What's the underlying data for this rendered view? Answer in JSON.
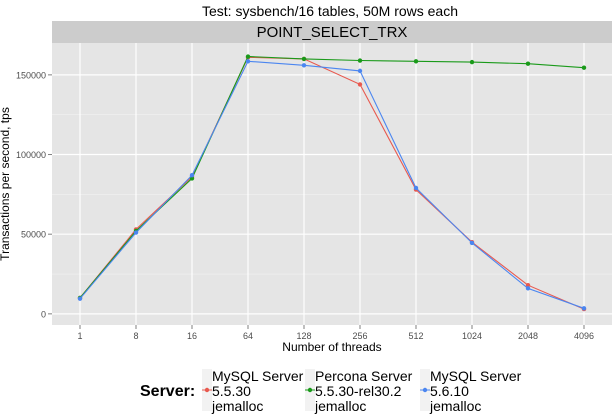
{
  "chart_data": {
    "type": "line",
    "title": "Test: sysbench/16 tables, 50M rows each",
    "facet_label": "POINT_SELECT_TRX",
    "xlabel": "Number of threads",
    "ylabel": "Transactions per second, tps",
    "categories": [
      "1",
      "8",
      "16",
      "64",
      "128",
      "256",
      "512",
      "1024",
      "2048",
      "4096"
    ],
    "y_ticks": [
      "0",
      "50000",
      "100000",
      "150000"
    ],
    "ylim": [
      -7000,
      170000
    ],
    "legend": {
      "title": "Server:",
      "position": "bottom"
    },
    "series": [
      {
        "name_lines": [
          "MySQL Server",
          "5.5.30",
          "jemalloc"
        ],
        "color": "#e8594f",
        "values": [
          10000,
          53000,
          86000,
          161000,
          160000,
          144000,
          78000,
          45000,
          18000,
          3000
        ]
      },
      {
        "name_lines": [
          "Percona Server",
          "5.5.30-rel30.2",
          "jemalloc"
        ],
        "color": "#1a9a1a",
        "values": [
          10000,
          52000,
          85000,
          161500,
          160000,
          159000,
          158500,
          158000,
          157000,
          154500
        ]
      },
      {
        "name_lines": [
          "MySQL Server",
          "5.6.10",
          "jemalloc"
        ],
        "color": "#4b86f0",
        "values": [
          9500,
          51000,
          87000,
          158500,
          156000,
          152500,
          79000,
          44500,
          16000,
          3500
        ]
      }
    ]
  }
}
